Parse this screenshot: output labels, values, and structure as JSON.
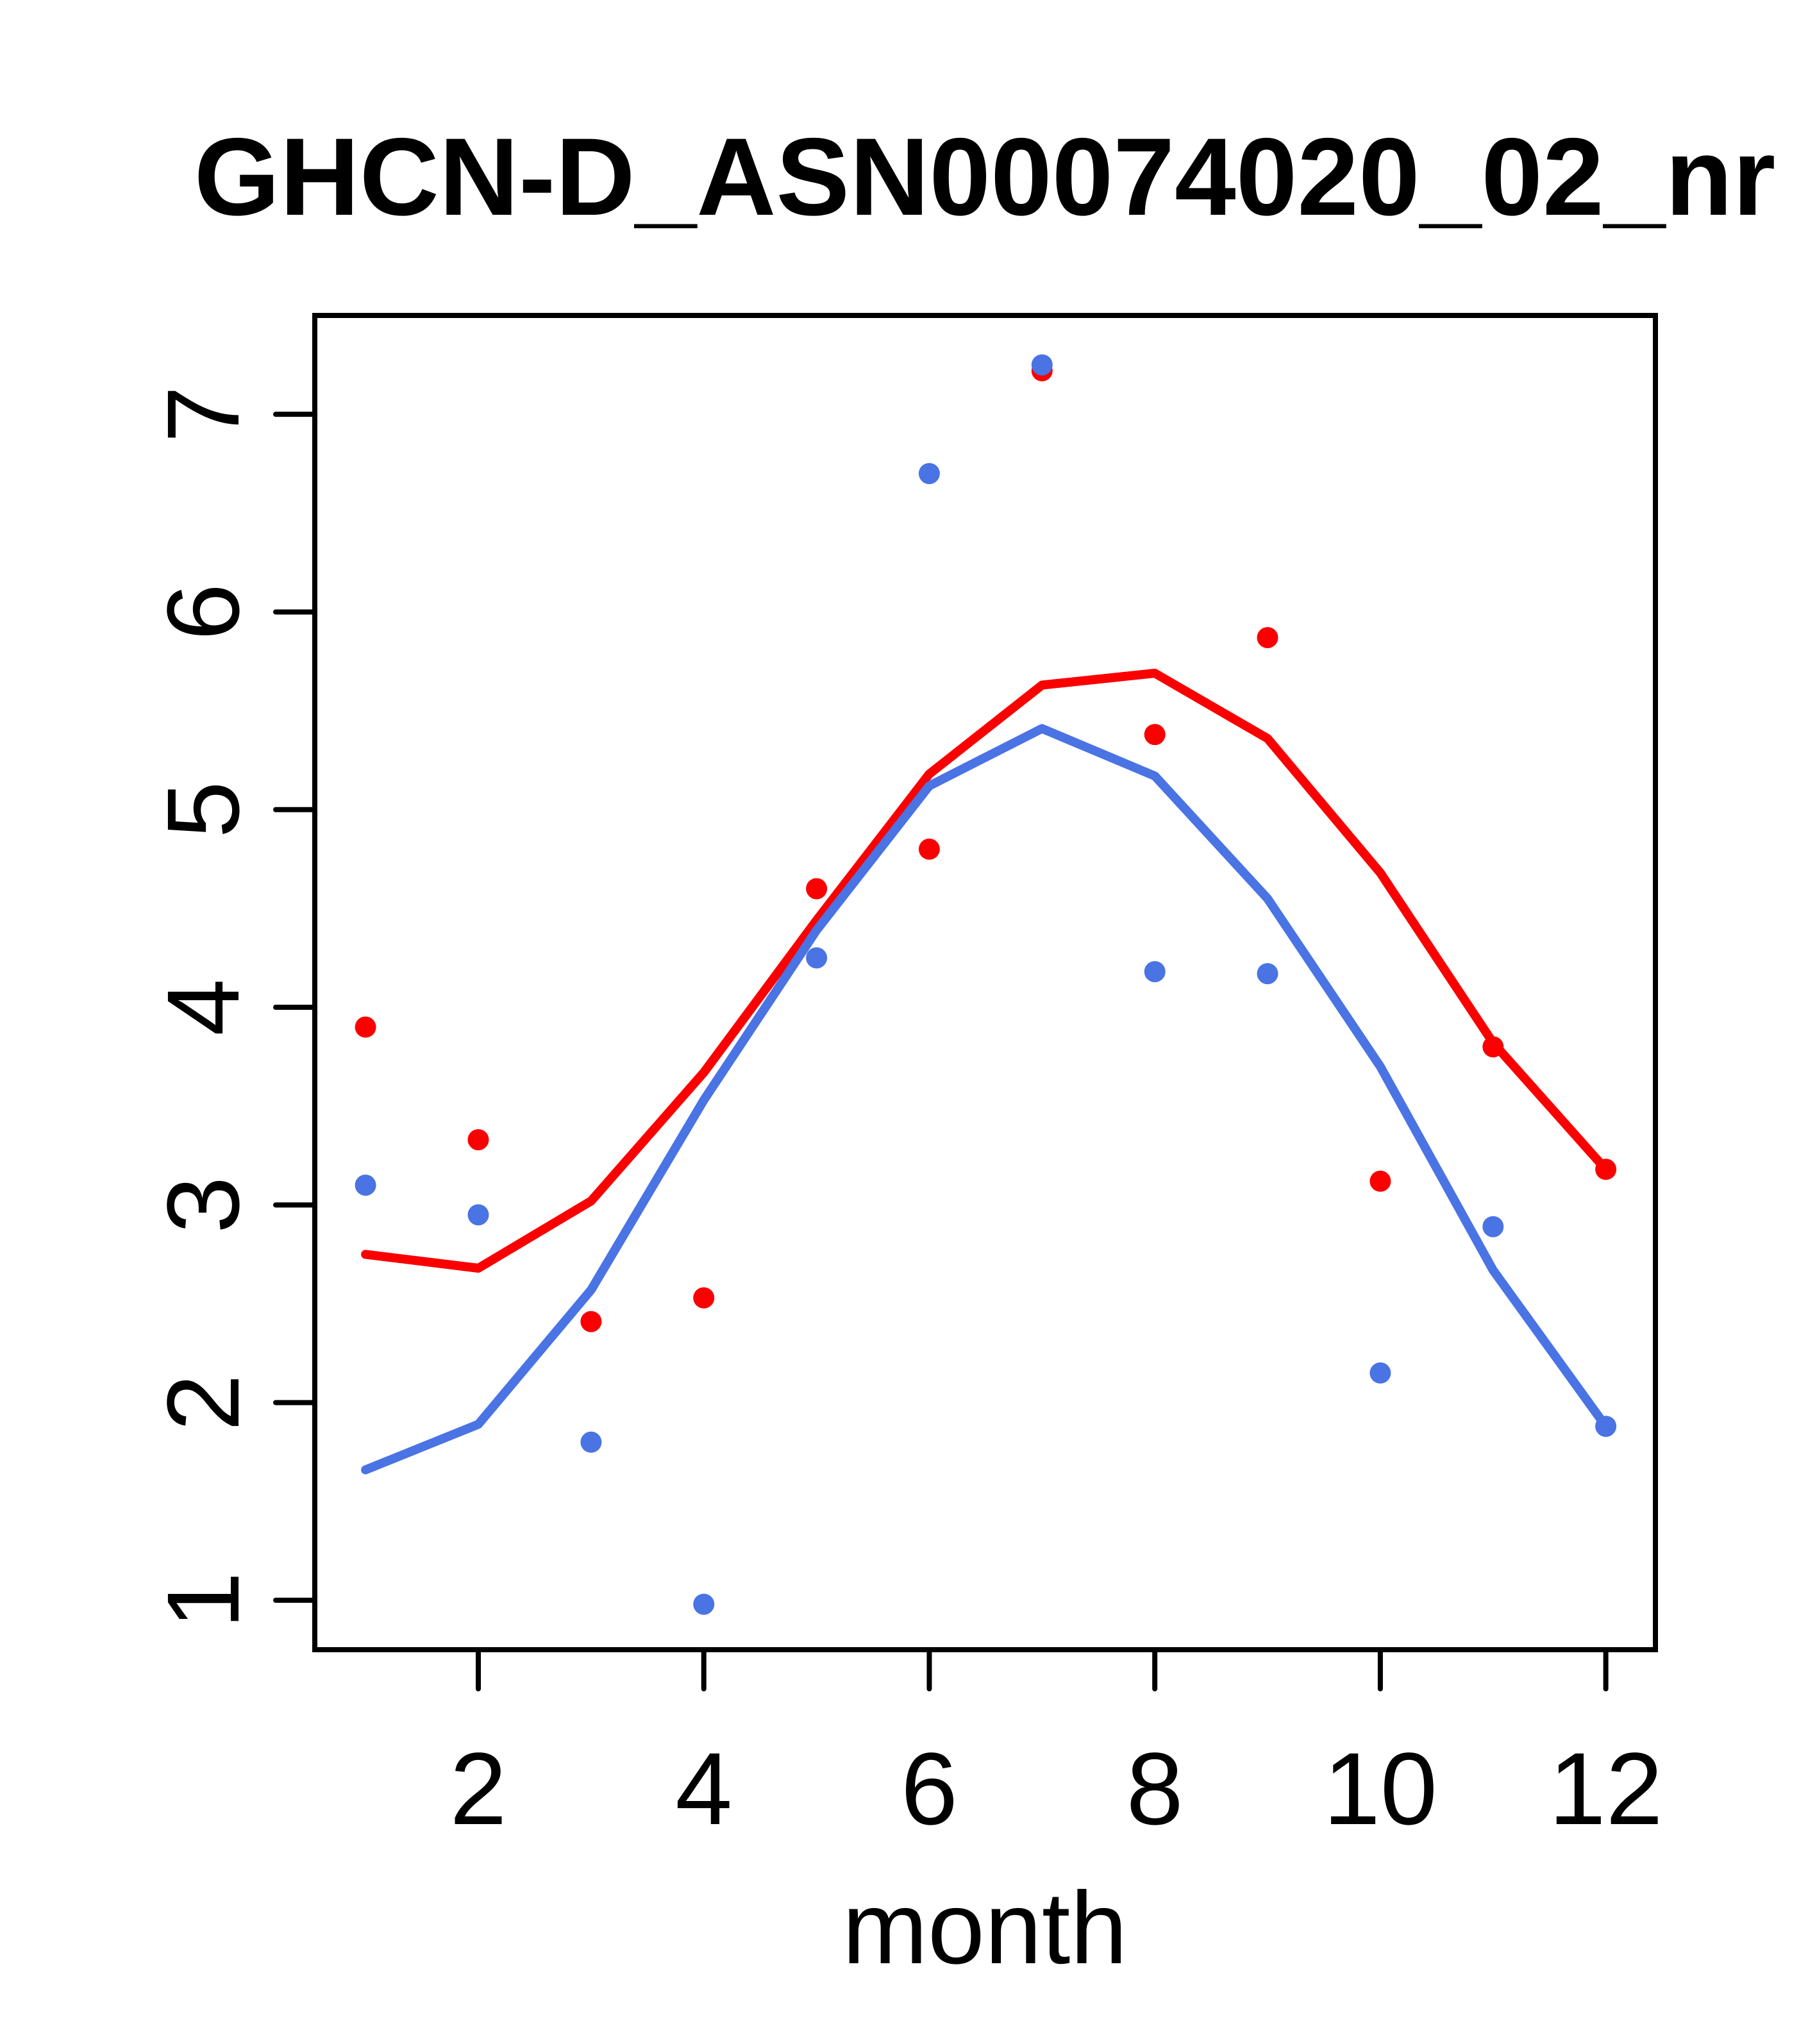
{
  "chart_data": {
    "type": "scatter",
    "title": "GHCN-D_ASN00074020_02_nr",
    "xlabel": "month",
    "ylabel": "",
    "months": [
      1,
      2,
      3,
      4,
      5,
      6,
      7,
      8,
      9,
      10,
      11,
      12
    ],
    "xlim": [
      0.55,
      12.44
    ],
    "ylim": [
      0.75,
      7.5
    ],
    "x_tick_values": [
      2,
      4,
      6,
      8,
      10,
      12
    ],
    "x_tick_labels": [
      "2",
      "4",
      "6",
      "8",
      "10",
      "12"
    ],
    "y_tick_values": [
      1,
      2,
      3,
      4,
      5,
      6,
      7
    ],
    "y_tick_labels": [
      "1",
      "2",
      "3",
      "4",
      "5",
      "6",
      "7"
    ],
    "grid": false,
    "legend": "none",
    "colors": {
      "red": "#fb0000",
      "blue": "#4a73e4",
      "axis": "#000000",
      "background": "#ffffff"
    },
    "series": [
      {
        "name": "red-points",
        "kind": "points",
        "color": "#fb0000",
        "values": [
          3.9,
          3.33,
          2.41,
          2.53,
          4.6,
          4.8,
          7.22,
          5.38,
          5.87,
          3.12,
          3.8,
          3.18
        ]
      },
      {
        "name": "blue-points",
        "kind": "points",
        "color": "#4a73e4",
        "values": [
          3.1,
          2.95,
          1.8,
          0.98,
          4.25,
          6.7,
          7.25,
          4.18,
          4.17,
          2.15,
          2.89,
          1.88
        ]
      },
      {
        "name": "red-line",
        "kind": "line",
        "color": "#fb0000",
        "values": [
          2.75,
          2.68,
          3.02,
          3.67,
          4.44,
          5.18,
          5.63,
          5.69,
          5.36,
          4.68,
          3.82,
          3.18
        ]
      },
      {
        "name": "blue-line",
        "kind": "line",
        "color": "#4a73e4",
        "values": [
          1.66,
          1.89,
          2.57,
          3.53,
          4.39,
          5.12,
          5.41,
          5.17,
          4.55,
          3.7,
          2.67,
          1.88
        ]
      }
    ]
  }
}
